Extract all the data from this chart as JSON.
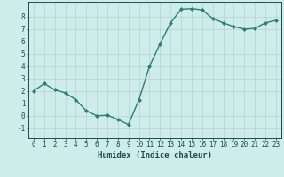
{
  "x": [
    0,
    1,
    2,
    3,
    4,
    5,
    6,
    7,
    8,
    9,
    10,
    11,
    12,
    13,
    14,
    15,
    16,
    17,
    18,
    19,
    20,
    21,
    22,
    23
  ],
  "y": [
    2.0,
    2.6,
    2.1,
    1.85,
    1.3,
    0.4,
    0.0,
    0.05,
    -0.3,
    -0.7,
    1.3,
    4.0,
    5.8,
    7.5,
    8.6,
    8.65,
    8.55,
    7.85,
    7.5,
    7.2,
    7.0,
    7.05,
    7.5,
    7.7
  ],
  "line_color": "#2e7d6e",
  "marker": "D",
  "marker_size": 2.0,
  "line_width": 1.0,
  "background_color": "#ceecea",
  "grid_color": "#b8d8d5",
  "xlabel": "Humidex (Indice chaleur)",
  "xlim": [
    -0.5,
    23.5
  ],
  "ylim": [
    -1.8,
    9.2
  ],
  "yticks": [
    -1,
    0,
    1,
    2,
    3,
    4,
    5,
    6,
    7,
    8
  ],
  "xticks": [
    0,
    1,
    2,
    3,
    4,
    5,
    6,
    7,
    8,
    9,
    10,
    11,
    12,
    13,
    14,
    15,
    16,
    17,
    18,
    19,
    20,
    21,
    22,
    23
  ],
  "tick_color": "#1a4d4a",
  "xlabel_fontsize": 6.5,
  "tick_fontsize": 5.5
}
